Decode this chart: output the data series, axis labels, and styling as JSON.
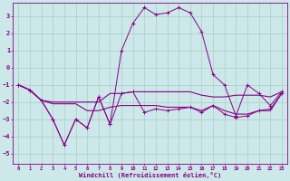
{
  "xlabel": "Windchill (Refroidissement éolien,°C)",
  "bg_color": "#cce8e8",
  "grid_color": "#aacccc",
  "line_color": "#880088",
  "x_ticks": [
    0,
    1,
    2,
    3,
    4,
    5,
    6,
    7,
    8,
    9,
    10,
    11,
    12,
    13,
    14,
    15,
    16,
    17,
    18,
    19,
    20,
    21,
    22,
    23
  ],
  "y_ticks": [
    -5,
    -4,
    -3,
    -2,
    -1,
    0,
    1,
    2,
    3
  ],
  "xlim": [
    -0.5,
    23.5
  ],
  "ylim": [
    -5.6,
    3.8
  ],
  "line1_x": [
    0,
    1,
    2,
    3,
    4,
    5,
    6,
    7,
    8,
    9,
    10,
    11,
    12,
    13,
    14,
    15,
    16,
    17,
    18,
    19,
    20,
    21,
    22,
    23
  ],
  "line1_y": [
    -1.0,
    -1.3,
    -1.9,
    -3.0,
    -4.5,
    -3.0,
    -3.5,
    -1.7,
    -3.3,
    1.0,
    2.6,
    3.5,
    3.1,
    3.2,
    3.5,
    3.2,
    2.1,
    -0.4,
    -1.0,
    -2.8,
    -1.0,
    -1.5,
    -2.2,
    -1.4
  ],
  "line2_x": [
    0,
    1,
    2,
    3,
    4,
    5,
    6,
    7,
    8,
    9,
    10,
    11,
    12,
    13,
    14,
    15,
    16,
    17,
    18,
    19,
    20,
    21,
    22,
    23
  ],
  "line2_y": [
    -1.0,
    -1.3,
    -1.9,
    -2.0,
    -2.0,
    -2.0,
    -2.0,
    -2.0,
    -1.5,
    -1.5,
    -1.4,
    -1.4,
    -1.4,
    -1.4,
    -1.4,
    -1.4,
    -1.6,
    -1.7,
    -1.7,
    -1.6,
    -1.6,
    -1.6,
    -1.7,
    -1.4
  ],
  "line3_x": [
    0,
    1,
    2,
    3,
    4,
    5,
    6,
    7,
    8,
    9,
    10,
    11,
    12,
    13,
    14,
    15,
    16,
    17,
    18,
    19,
    20,
    21,
    22,
    23
  ],
  "line3_y": [
    -1.0,
    -1.3,
    -1.9,
    -2.1,
    -2.1,
    -2.1,
    -2.5,
    -2.5,
    -2.3,
    -2.2,
    -2.2,
    -2.2,
    -2.2,
    -2.3,
    -2.3,
    -2.3,
    -2.5,
    -2.2,
    -2.5,
    -2.7,
    -2.7,
    -2.5,
    -2.5,
    -1.5
  ],
  "line4_x": [
    0,
    1,
    2,
    3,
    4,
    5,
    6,
    7,
    8,
    9,
    10,
    11,
    12,
    13,
    14,
    15,
    16,
    17,
    18,
    19,
    20,
    21,
    22,
    23
  ],
  "line4_y": [
    -1.0,
    -1.3,
    -1.9,
    -3.0,
    -4.5,
    -3.0,
    -3.5,
    -1.7,
    -3.3,
    -1.5,
    -1.4,
    -2.6,
    -2.4,
    -2.5,
    -2.4,
    -2.3,
    -2.6,
    -2.2,
    -2.7,
    -2.9,
    -2.8,
    -2.5,
    -2.4,
    -1.5
  ]
}
